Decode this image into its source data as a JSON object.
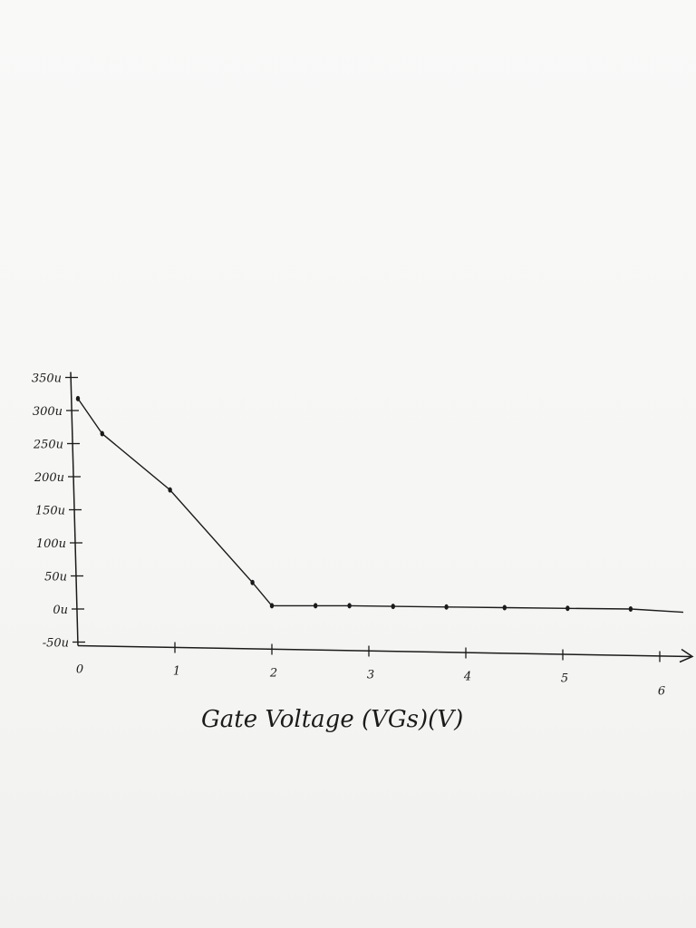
{
  "chart_data": {
    "type": "line",
    "title": "",
    "xlabel": "Gate Voltage (VGs)(V)",
    "ylabel": "",
    "xlim": [
      0,
      6
    ],
    "ylim": [
      -50,
      350
    ],
    "x_ticks": [
      "0",
      "1",
      "2",
      "3",
      "4",
      "5",
      "6"
    ],
    "y_ticks": [
      "350u",
      "300u",
      "250u",
      "200u",
      "150u",
      "100u",
      "50u",
      "0u",
      "-50u"
    ],
    "points": [
      {
        "x": 0.0,
        "y": 318
      },
      {
        "x": 0.25,
        "y": 265
      },
      {
        "x": 0.95,
        "y": 180
      },
      {
        "x": 1.8,
        "y": 40
      },
      {
        "x": 2.0,
        "y": 5
      },
      {
        "x": 2.45,
        "y": 5
      },
      {
        "x": 2.8,
        "y": 5
      },
      {
        "x": 3.25,
        "y": 4
      },
      {
        "x": 3.8,
        "y": 3
      },
      {
        "x": 4.4,
        "y": 2
      },
      {
        "x": 5.05,
        "y": 1
      },
      {
        "x": 5.7,
        "y": 0
      }
    ],
    "line_color": "#1b1b1b",
    "grid": false,
    "legend": "none"
  }
}
